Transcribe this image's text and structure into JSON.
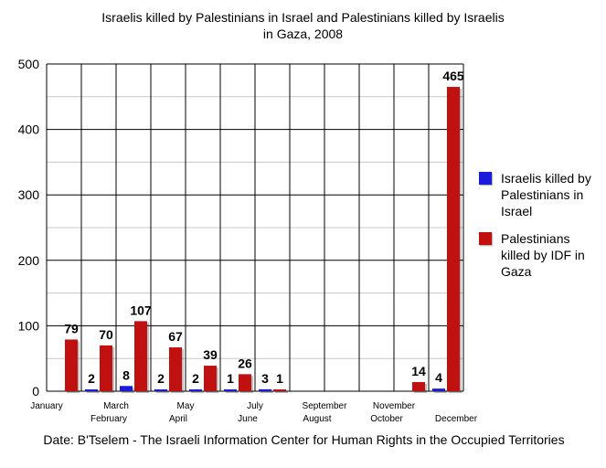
{
  "chart_data": {
    "type": "bar",
    "title_line1": "Israelis killed by Palestinians in Israel and Palestinians killed by Israelis",
    "title_line2": "in Gaza, 2008",
    "categories": [
      "January",
      "February",
      "March",
      "April",
      "May",
      "June",
      "July",
      "August",
      "September",
      "October",
      "November",
      "December"
    ],
    "series": [
      {
        "name": "Israelis killed by Palestinians in Israel",
        "color": "#1a1adb",
        "values": [
          0,
          2,
          8,
          2,
          2,
          1,
          3,
          0,
          0,
          0,
          0,
          4
        ]
      },
      {
        "name": "Palestinians killed by IDF in Gaza",
        "color": "#c01010",
        "values": [
          79,
          70,
          107,
          67,
          39,
          26,
          1,
          0,
          0,
          0,
          14,
          465
        ]
      }
    ],
    "data_labels": [
      {
        "series": 1,
        "index": 0,
        "text": "79"
      },
      {
        "series": 0,
        "index": 1,
        "text": "2"
      },
      {
        "series": 1,
        "index": 1,
        "text": "70"
      },
      {
        "series": 0,
        "index": 2,
        "text": "8"
      },
      {
        "series": 1,
        "index": 2,
        "text": "107"
      },
      {
        "series": 0,
        "index": 3,
        "text": "2"
      },
      {
        "series": 1,
        "index": 3,
        "text": "67"
      },
      {
        "series": 0,
        "index": 4,
        "text": "2"
      },
      {
        "series": 1,
        "index": 4,
        "text": "39"
      },
      {
        "series": 0,
        "index": 5,
        "text": "1"
      },
      {
        "series": 1,
        "index": 5,
        "text": "26"
      },
      {
        "series": 0,
        "index": 6,
        "text": "3"
      },
      {
        "series": 1,
        "index": 6,
        "text": "1"
      },
      {
        "series": 1,
        "index": 10,
        "text": "14"
      },
      {
        "series": 0,
        "index": 11,
        "text": "4"
      },
      {
        "series": 1,
        "index": 11,
        "text": "465"
      }
    ],
    "ylim": [
      0,
      500
    ],
    "yticks": [
      0,
      100,
      200,
      300,
      400,
      500
    ],
    "grid": true,
    "legend_position": "right"
  },
  "footer": "Date: B'Tselem - The Israeli Information Center for Human Rights in the Occupied Territories"
}
